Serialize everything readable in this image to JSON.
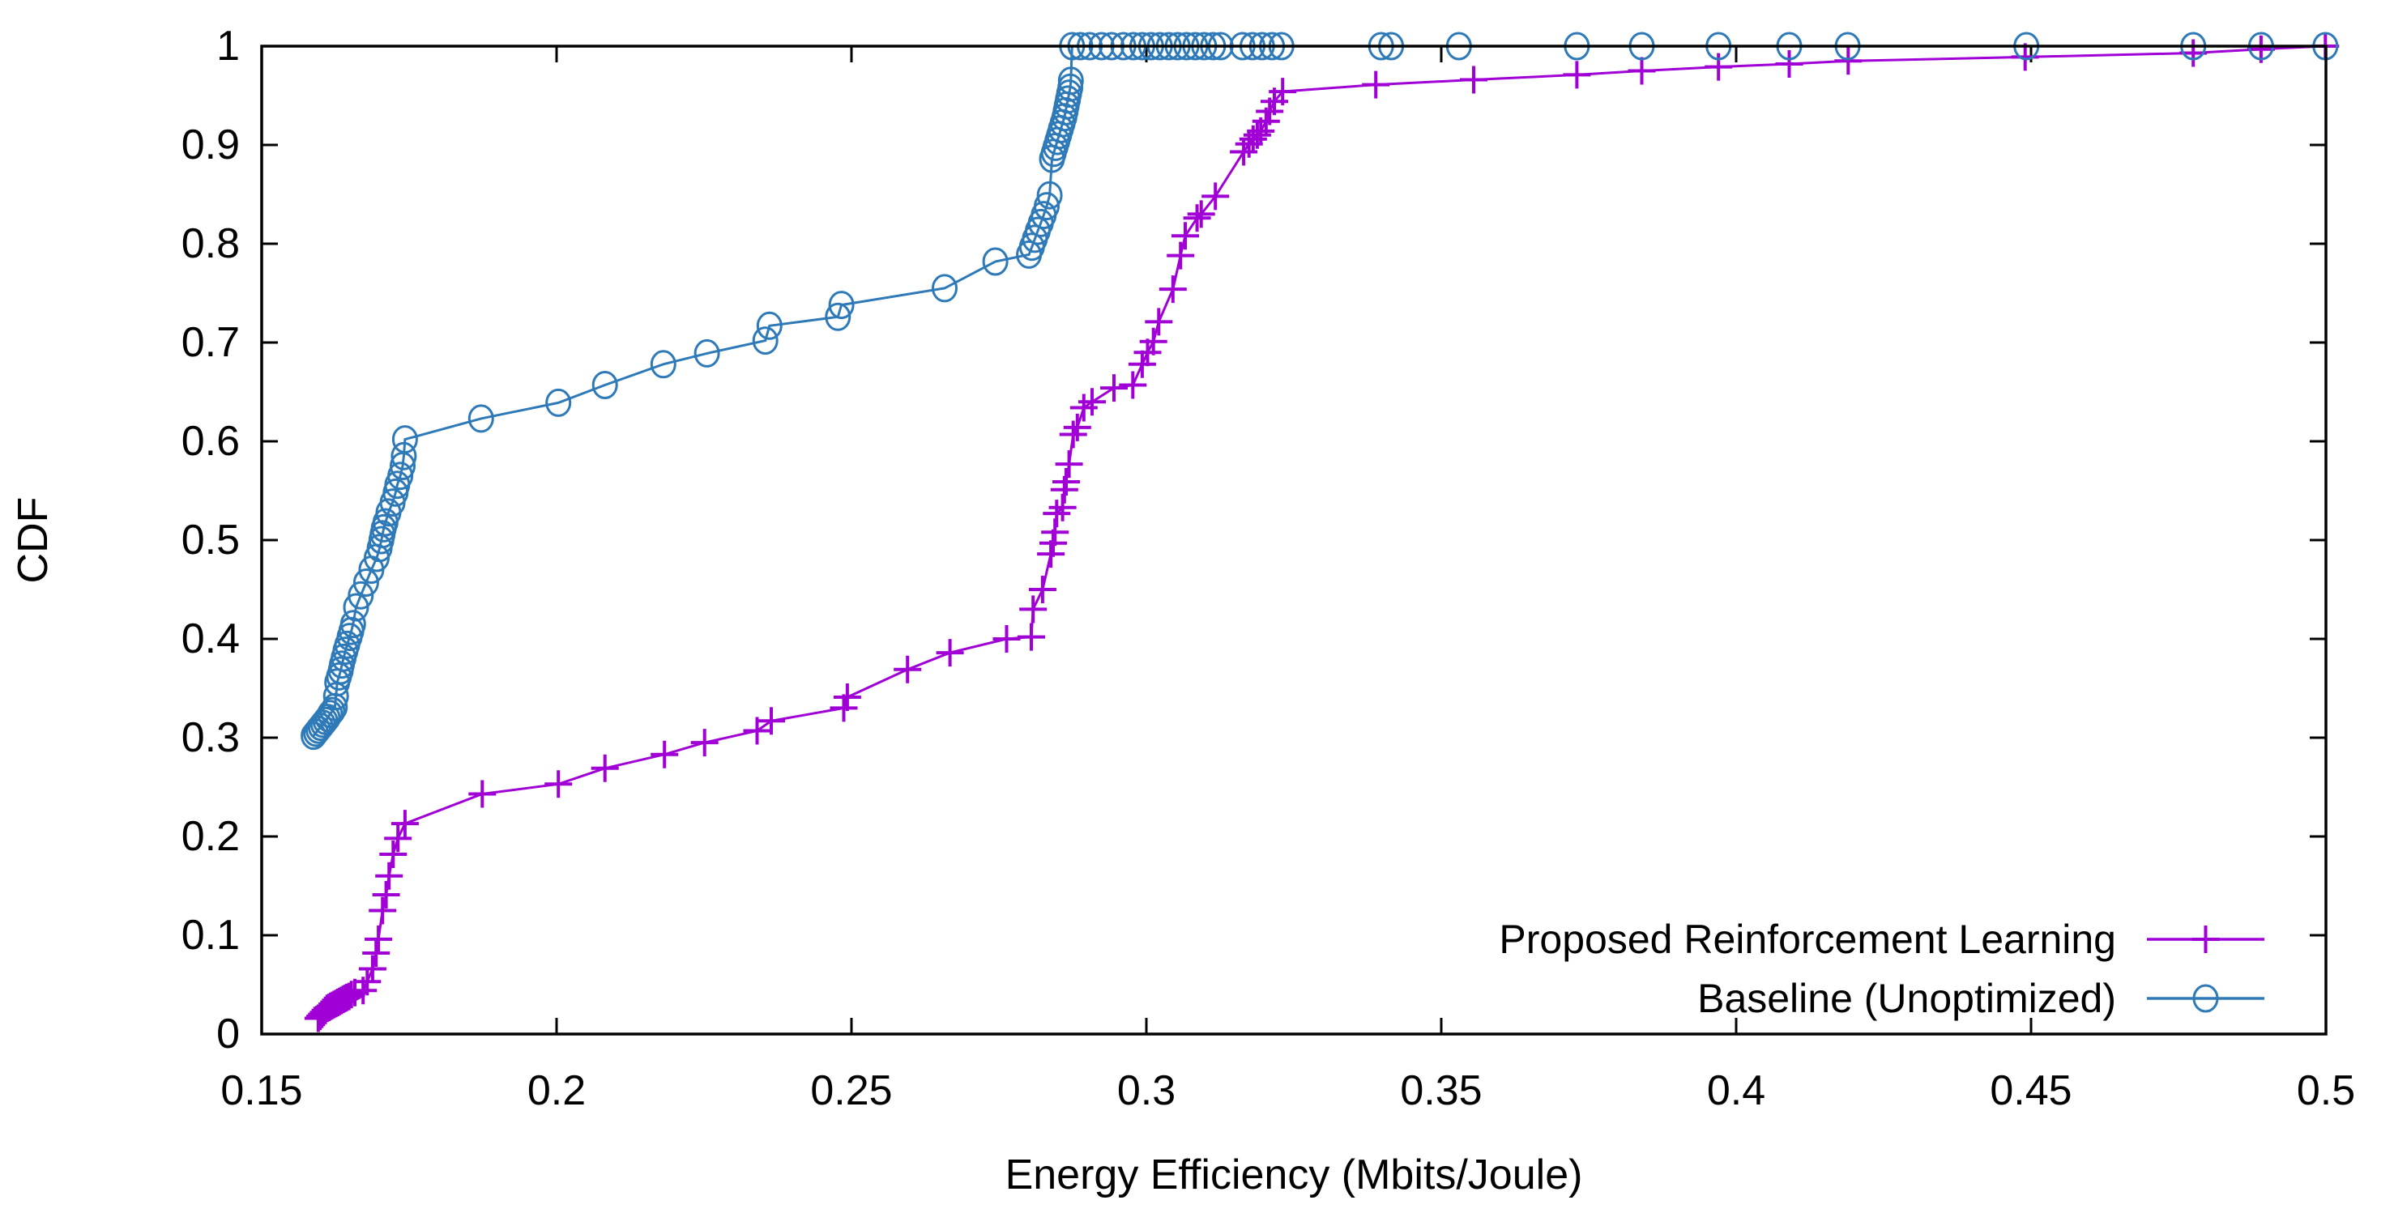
{
  "figure": {
    "background": "#ffffff",
    "frame_color": "#000000",
    "text_color": "#000000"
  },
  "chart_data": {
    "type": "line",
    "title": "",
    "xlabel": "Energy Efficiency (Mbits/Joule)",
    "ylabel": "CDF",
    "xlim": [
      0.15,
      0.5
    ],
    "ylim": [
      0,
      1
    ],
    "x_ticks": [
      0.15,
      0.2,
      0.25,
      0.3,
      0.35,
      0.4,
      0.45,
      0.5
    ],
    "x_tick_labels": [
      "0.15",
      "0.2",
      "0.25",
      "0.3",
      "0.35",
      "0.4",
      "0.45",
      "0.5"
    ],
    "y_ticks": [
      0,
      0.1,
      0.2,
      0.3,
      0.4,
      0.5,
      0.6,
      0.7,
      0.8,
      0.9,
      1
    ],
    "y_tick_labels": [
      "0",
      "0.1",
      "0.2",
      "0.3",
      "0.4",
      "0.5",
      "0.6",
      "0.7",
      "0.8",
      "0.9",
      "1"
    ],
    "grid": false,
    "legend_position": "inside-bottom-right",
    "series": [
      {
        "name": "Proposed Reinforcement Learning",
        "color": "#a000d6",
        "marker": "plus",
        "points": [
          [
            0.1596,
            0.016
          ],
          [
            0.1599,
            0.018
          ],
          [
            0.1602,
            0.02
          ],
          [
            0.1605,
            0.022
          ],
          [
            0.1608,
            0.024
          ],
          [
            0.1611,
            0.026
          ],
          [
            0.1614,
            0.027
          ],
          [
            0.1617,
            0.028
          ],
          [
            0.162,
            0.029
          ],
          [
            0.1623,
            0.03
          ],
          [
            0.1626,
            0.031
          ],
          [
            0.1629,
            0.032
          ],
          [
            0.1632,
            0.033
          ],
          [
            0.1635,
            0.034
          ],
          [
            0.1638,
            0.035
          ],
          [
            0.1641,
            0.036
          ],
          [
            0.1644,
            0.037
          ],
          [
            0.1648,
            0.038
          ],
          [
            0.1652,
            0.04
          ],
          [
            0.1658,
            0.042
          ],
          [
            0.1672,
            0.044
          ],
          [
            0.1679,
            0.053
          ],
          [
            0.1688,
            0.066
          ],
          [
            0.1694,
            0.082
          ],
          [
            0.1698,
            0.096
          ],
          [
            0.1705,
            0.125
          ],
          [
            0.1711,
            0.141
          ],
          [
            0.1716,
            0.16
          ],
          [
            0.1723,
            0.182
          ],
          [
            0.1731,
            0.198
          ],
          [
            0.1743,
            0.213
          ],
          [
            0.1874,
            0.243
          ],
          [
            0.2003,
            0.253
          ],
          [
            0.2082,
            0.269
          ],
          [
            0.2183,
            0.283
          ],
          [
            0.2251,
            0.295
          ],
          [
            0.234,
            0.307
          ],
          [
            0.2364,
            0.317
          ],
          [
            0.2487,
            0.33
          ],
          [
            0.2493,
            0.341
          ],
          [
            0.2595,
            0.369
          ],
          [
            0.2667,
            0.386
          ],
          [
            0.2763,
            0.4
          ],
          [
            0.2805,
            0.402
          ],
          [
            0.2808,
            0.43
          ],
          [
            0.2824,
            0.45
          ],
          [
            0.2838,
            0.486
          ],
          [
            0.2842,
            0.497
          ],
          [
            0.2845,
            0.508
          ],
          [
            0.2848,
            0.527
          ],
          [
            0.2858,
            0.533
          ],
          [
            0.2861,
            0.551
          ],
          [
            0.2864,
            0.559
          ],
          [
            0.2869,
            0.577
          ],
          [
            0.2876,
            0.607
          ],
          [
            0.2883,
            0.614
          ],
          [
            0.2894,
            0.634
          ],
          [
            0.2908,
            0.64
          ],
          [
            0.2945,
            0.654
          ],
          [
            0.2977,
            0.657
          ],
          [
            0.2993,
            0.678
          ],
          [
            0.3002,
            0.69
          ],
          [
            0.3012,
            0.701
          ],
          [
            0.3021,
            0.721
          ],
          [
            0.3045,
            0.754
          ],
          [
            0.3058,
            0.788
          ],
          [
            0.3066,
            0.808
          ],
          [
            0.3086,
            0.826
          ],
          [
            0.3093,
            0.83
          ],
          [
            0.3117,
            0.848
          ],
          [
            0.3165,
            0.893
          ],
          [
            0.3174,
            0.901
          ],
          [
            0.3181,
            0.906
          ],
          [
            0.3188,
            0.91
          ],
          [
            0.3194,
            0.914
          ],
          [
            0.3203,
            0.924
          ],
          [
            0.3209,
            0.934
          ],
          [
            0.3217,
            0.944
          ],
          [
            0.3231,
            0.954
          ],
          [
            0.3389,
            0.961
          ],
          [
            0.3555,
            0.966
          ],
          [
            0.373,
            0.971
          ],
          [
            0.384,
            0.975
          ],
          [
            0.397,
            0.979
          ],
          [
            0.409,
            0.982
          ],
          [
            0.419,
            0.985
          ],
          [
            0.449,
            0.989
          ],
          [
            0.4775,
            0.993
          ],
          [
            0.489,
            0.997
          ],
          [
            0.4999,
            1.0
          ]
        ]
      },
      {
        "name": "Baseline (Unoptimized)",
        "color": "#2e79b8",
        "marker": "circle",
        "points": [
          [
            0.1588,
            0.302
          ],
          [
            0.1592,
            0.305
          ],
          [
            0.1596,
            0.308
          ],
          [
            0.16,
            0.311
          ],
          [
            0.1604,
            0.314
          ],
          [
            0.1608,
            0.317
          ],
          [
            0.1612,
            0.32
          ],
          [
            0.1616,
            0.324
          ],
          [
            0.162,
            0.327
          ],
          [
            0.1624,
            0.331
          ],
          [
            0.1626,
            0.342
          ],
          [
            0.1628,
            0.356
          ],
          [
            0.1631,
            0.362
          ],
          [
            0.1634,
            0.368
          ],
          [
            0.1636,
            0.374
          ],
          [
            0.1639,
            0.381
          ],
          [
            0.1642,
            0.388
          ],
          [
            0.1645,
            0.394
          ],
          [
            0.1649,
            0.402
          ],
          [
            0.1652,
            0.408
          ],
          [
            0.1655,
            0.415
          ],
          [
            0.166,
            0.432
          ],
          [
            0.1668,
            0.444
          ],
          [
            0.1677,
            0.457
          ],
          [
            0.1686,
            0.47
          ],
          [
            0.1695,
            0.482
          ],
          [
            0.17,
            0.492
          ],
          [
            0.1703,
            0.5
          ],
          [
            0.1705,
            0.506
          ],
          [
            0.1707,
            0.512
          ],
          [
            0.171,
            0.518
          ],
          [
            0.1715,
            0.528
          ],
          [
            0.1722,
            0.538
          ],
          [
            0.1727,
            0.548
          ],
          [
            0.173,
            0.556
          ],
          [
            0.1735,
            0.565
          ],
          [
            0.1739,
            0.575
          ],
          [
            0.1741,
            0.585
          ],
          [
            0.1743,
            0.602
          ],
          [
            0.1872,
            0.623
          ],
          [
            0.2003,
            0.639
          ],
          [
            0.2082,
            0.657
          ],
          [
            0.2181,
            0.678
          ],
          [
            0.2255,
            0.689
          ],
          [
            0.2354,
            0.702
          ],
          [
            0.2361,
            0.717
          ],
          [
            0.2477,
            0.726
          ],
          [
            0.2483,
            0.738
          ],
          [
            0.2658,
            0.755
          ],
          [
            0.2744,
            0.782
          ],
          [
            0.2801,
            0.789
          ],
          [
            0.2806,
            0.797
          ],
          [
            0.2811,
            0.805
          ],
          [
            0.2816,
            0.813
          ],
          [
            0.2821,
            0.821
          ],
          [
            0.2826,
            0.829
          ],
          [
            0.2831,
            0.838
          ],
          [
            0.2836,
            0.849
          ],
          [
            0.284,
            0.886
          ],
          [
            0.2843,
            0.892
          ],
          [
            0.2846,
            0.898
          ],
          [
            0.2849,
            0.904
          ],
          [
            0.2852,
            0.91
          ],
          [
            0.2855,
            0.916
          ],
          [
            0.2858,
            0.922
          ],
          [
            0.2861,
            0.928
          ],
          [
            0.2863,
            0.934
          ],
          [
            0.2865,
            0.94
          ],
          [
            0.2867,
            0.946
          ],
          [
            0.2869,
            0.952
          ],
          [
            0.2871,
            0.958
          ],
          [
            0.2872,
            0.965
          ],
          [
            0.2874,
            1.0
          ],
          [
            0.2888,
            1.0
          ],
          [
            0.2904,
            1.0
          ],
          [
            0.2924,
            1.0
          ],
          [
            0.2941,
            1.0
          ],
          [
            0.2961,
            1.0
          ],
          [
            0.2978,
            1.0
          ],
          [
            0.2993,
            1.0
          ],
          [
            0.3008,
            1.0
          ],
          [
            0.3023,
            1.0
          ],
          [
            0.3038,
            1.0
          ],
          [
            0.3053,
            1.0
          ],
          [
            0.3068,
            1.0
          ],
          [
            0.3083,
            1.0
          ],
          [
            0.3098,
            1.0
          ],
          [
            0.3113,
            1.0
          ],
          [
            0.3126,
            1.0
          ],
          [
            0.3163,
            1.0
          ],
          [
            0.318,
            1.0
          ],
          [
            0.3196,
            1.0
          ],
          [
            0.3213,
            1.0
          ],
          [
            0.3229,
            1.0
          ],
          [
            0.3398,
            1.0
          ],
          [
            0.3415,
            1.0
          ],
          [
            0.353,
            1.0
          ],
          [
            0.373,
            1.0
          ],
          [
            0.384,
            1.0
          ],
          [
            0.397,
            1.0
          ],
          [
            0.409,
            1.0
          ],
          [
            0.4189,
            1.0
          ],
          [
            0.4492,
            1.0
          ],
          [
            0.4775,
            1.0
          ],
          [
            0.489,
            1.0
          ],
          [
            0.4999,
            1.0
          ]
        ]
      }
    ]
  }
}
